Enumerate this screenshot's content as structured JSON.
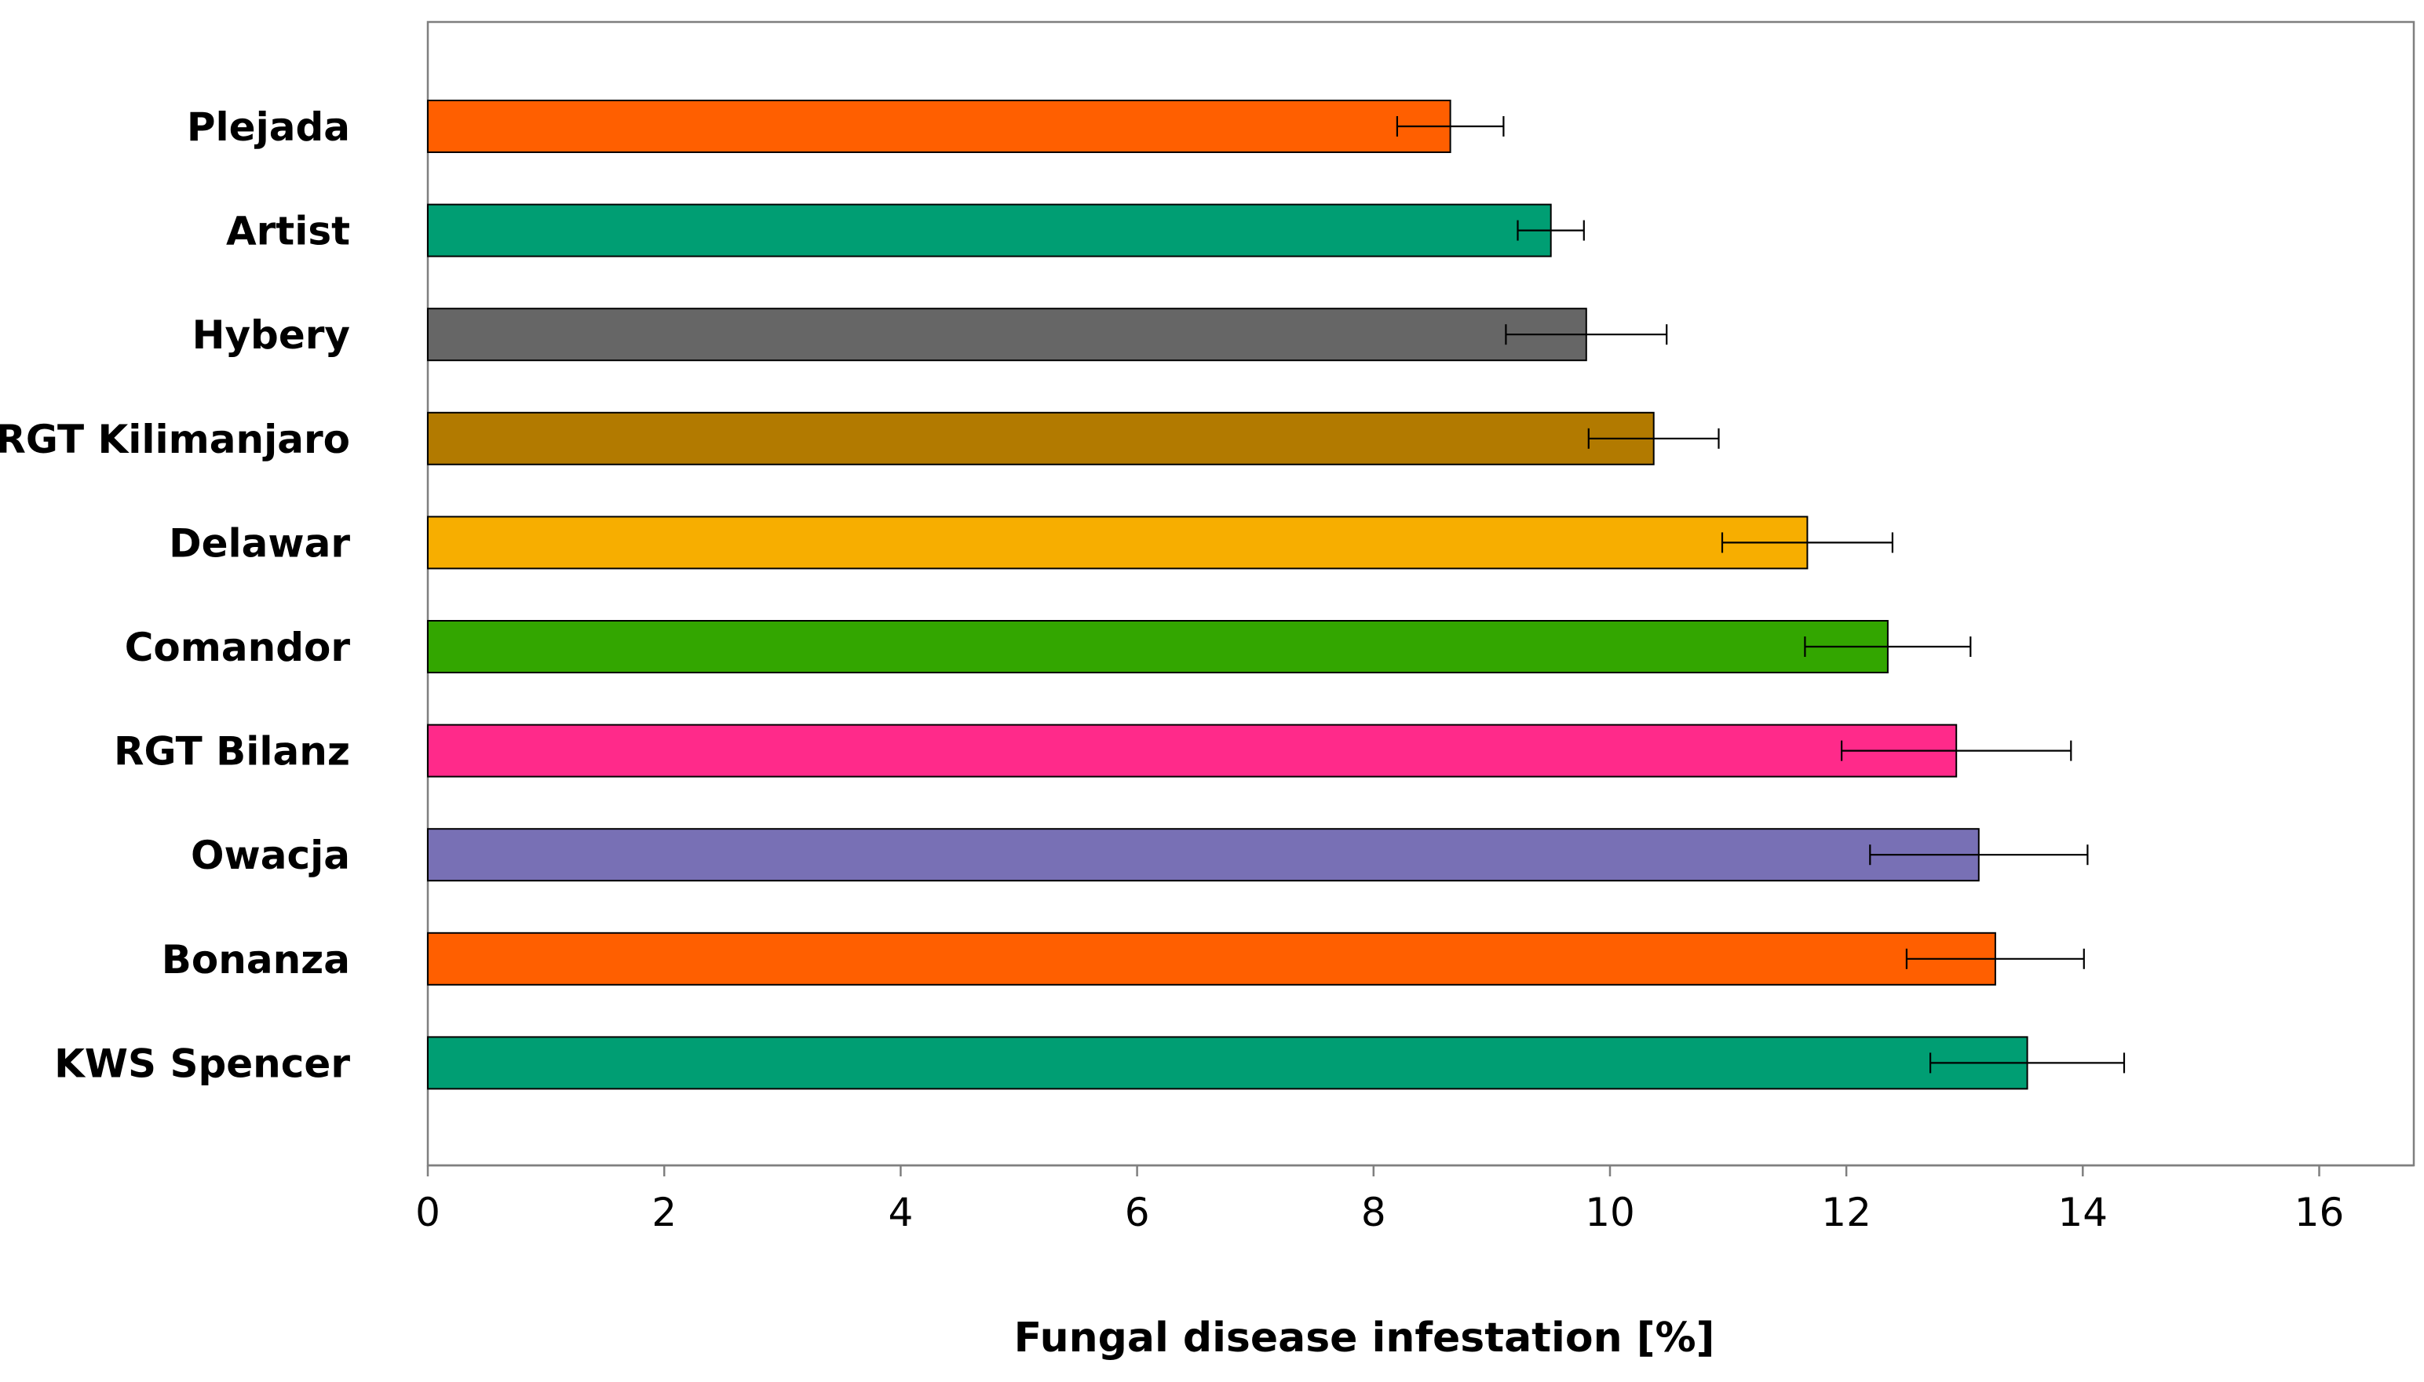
{
  "chart_data": {
    "type": "bar",
    "orientation": "horizontal",
    "title": "",
    "xlabel": "Fungal disease infestation [%]",
    "ylabel": "",
    "xlim": [
      0,
      16.8
    ],
    "xticks": [
      0,
      2,
      4,
      6,
      8,
      10,
      12,
      14,
      16
    ],
    "grid": false,
    "legend": "none",
    "categories": [
      "Plejada",
      "Artist",
      "Hybery",
      "RGT Kilimanjaro",
      "Delawar",
      "Comandor",
      "RGT Bilanz",
      "Owacja",
      "Bonanza",
      "KWS Spencer"
    ],
    "values": [
      8.65,
      9.5,
      9.8,
      10.37,
      11.67,
      12.35,
      12.93,
      13.12,
      13.26,
      13.53
    ],
    "errors": [
      0.45,
      0.28,
      0.68,
      0.55,
      0.72,
      0.7,
      0.97,
      0.92,
      0.75,
      0.82
    ],
    "colors": [
      "#FF5F00",
      "#009E73",
      "#666666",
      "#B27A00",
      "#F7AE00",
      "#33A600",
      "#FF2A8A",
      "#7870B5",
      "#FF5F00",
      "#009E73"
    ]
  }
}
